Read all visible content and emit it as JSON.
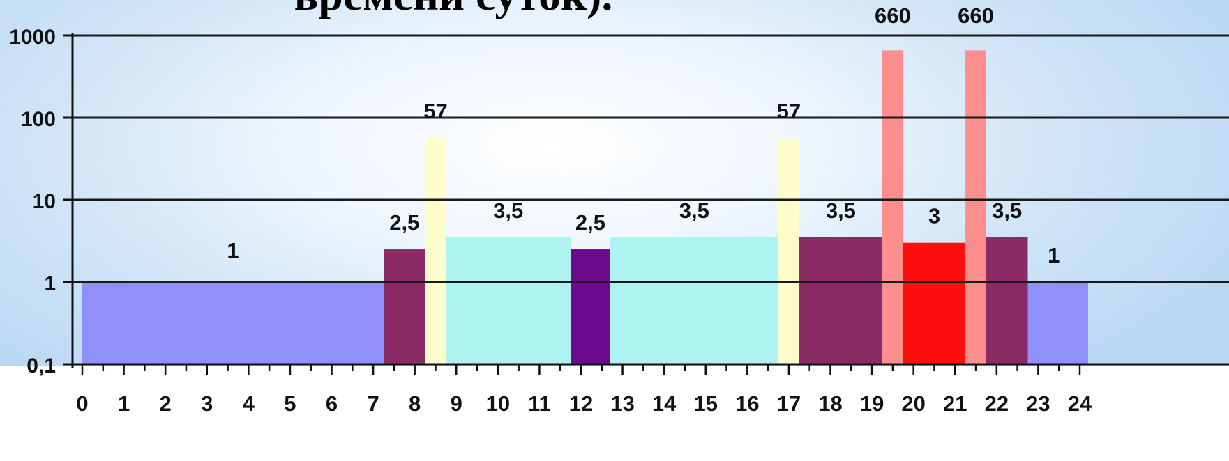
{
  "title": "времени суток).",
  "chart_data": {
    "type": "bar",
    "yscale": "log",
    "ylim": [
      0.1,
      1000
    ],
    "y_ticks": [
      1000,
      100,
      10,
      1,
      0.1
    ],
    "y_tick_labels": [
      "1000",
      "100",
      "10",
      "1",
      "0,1"
    ],
    "x_tick_labels": [
      "0",
      "1",
      "2",
      "3",
      "4",
      "5",
      "6",
      "7",
      "8",
      "9",
      "10",
      "11",
      "12",
      "13",
      "14",
      "15",
      "16",
      "17",
      "18",
      "19",
      "20",
      "21",
      "22",
      "23",
      "24"
    ],
    "xlim": [
      0,
      24
    ],
    "grid": true,
    "segments": [
      {
        "start": 0,
        "end": 7.25,
        "value": 1,
        "label": "1",
        "color": "#9190fa"
      },
      {
        "start": 7.25,
        "end": 8.25,
        "value": 2.5,
        "label": "2,5",
        "color": "#8b2b66"
      },
      {
        "start": 8.25,
        "end": 8.75,
        "value": 57,
        "label": "57",
        "color": "#fdfdcc"
      },
      {
        "start": 8.75,
        "end": 11.75,
        "value": 3.5,
        "label": "3,5",
        "color": "#aef2f1"
      },
      {
        "start": 11.75,
        "end": 12.7,
        "value": 2.5,
        "label": "2,5",
        "color": "#6b0a8c"
      },
      {
        "start": 12.7,
        "end": 16.75,
        "value": 3.5,
        "label": "3,5",
        "color": "#aef2f1"
      },
      {
        "start": 16.75,
        "end": 17.25,
        "value": 57,
        "label": "57",
        "color": "#fdfdcc"
      },
      {
        "start": 17.25,
        "end": 19.25,
        "value": 3.5,
        "label": "3,5",
        "color": "#8b2b66"
      },
      {
        "start": 19.25,
        "end": 19.75,
        "value": 660,
        "label": "660",
        "color": "#fc8f8d"
      },
      {
        "start": 19.75,
        "end": 21.25,
        "value": 3,
        "label": "3",
        "color": "#fd0f0f"
      },
      {
        "start": 21.25,
        "end": 21.75,
        "value": 660,
        "label": "660",
        "color": "#fc8f8d"
      },
      {
        "start": 21.75,
        "end": 22.75,
        "value": 3.5,
        "label": "3,5",
        "color": "#8b2b66"
      },
      {
        "start": 22.75,
        "end": 24,
        "value": 1,
        "label": "1",
        "color": "#9190fa"
      }
    ]
  }
}
